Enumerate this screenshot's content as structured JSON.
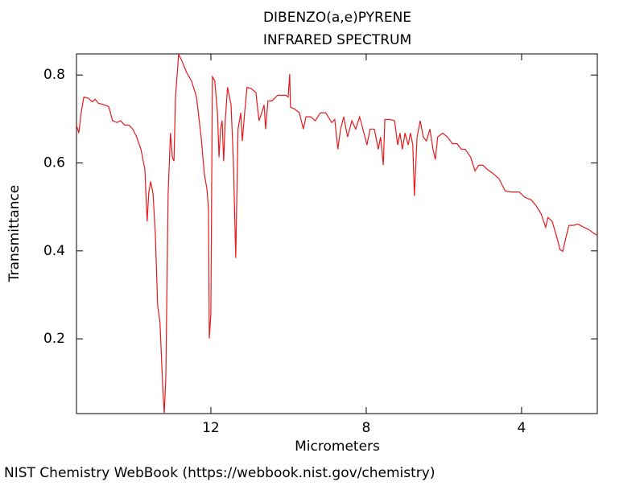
{
  "chart_data": {
    "type": "line",
    "title": "DIBENZO(a,e)PYRENE",
    "subtitle": "INFRARED SPECTRUM",
    "x_label": "Micrometers",
    "y_label": "Transmittance",
    "source": "NIST Chemistry WebBook (https://webbook.nist.gov/chemistry)",
    "xlim": [
      15.46,
      2.05
    ],
    "xticks": [
      12,
      8,
      4
    ],
    "ylim": [
      0.03,
      0.848
    ],
    "yticks": [
      0.2,
      0.4,
      0.6,
      0.8
    ],
    "series": [
      {
        "color": "#e8191c",
        "x": [
          15.46,
          15.4,
          15.34,
          15.27,
          15.15,
          15.05,
          14.98,
          14.9,
          14.74,
          14.63,
          14.53,
          14.42,
          14.32,
          14.22,
          14.11,
          14.01,
          13.91,
          13.8,
          13.7,
          13.64,
          13.6,
          13.55,
          13.49,
          13.43,
          13.37,
          13.31,
          13.24,
          13.2,
          13.16,
          13.1,
          13.04,
          12.99,
          12.95,
          12.91,
          12.83,
          12.75,
          12.62,
          12.5,
          12.37,
          12.25,
          12.17,
          12.1,
          12.06,
          12.04,
          12.0,
          11.96,
          11.9,
          11.83,
          11.79,
          11.75,
          11.71,
          11.67,
          11.63,
          11.57,
          11.48,
          11.42,
          11.36,
          11.3,
          11.23,
          11.19,
          11.13,
          11.07,
          10.96,
          10.84,
          10.76,
          10.69,
          10.63,
          10.59,
          10.53,
          10.43,
          10.28,
          10.07,
          10.01,
          9.97,
          9.95,
          9.85,
          9.72,
          9.62,
          9.55,
          9.43,
          9.31,
          9.18,
          9.04,
          8.89,
          8.81,
          8.73,
          8.66,
          8.58,
          8.48,
          8.37,
          8.27,
          8.17,
          8.06,
          7.98,
          7.9,
          7.79,
          7.69,
          7.63,
          7.56,
          7.52,
          7.38,
          7.27,
          7.19,
          7.13,
          7.07,
          7.0,
          6.92,
          6.86,
          6.8,
          6.76,
          6.69,
          6.61,
          6.53,
          6.45,
          6.36,
          6.28,
          6.22,
          6.16,
          6.03,
          5.91,
          5.78,
          5.66,
          5.55,
          5.45,
          5.31,
          5.2,
          5.1,
          5.0,
          4.89,
          4.75,
          4.58,
          4.42,
          4.25,
          4.06,
          3.92,
          3.75,
          3.63,
          3.5,
          3.38,
          3.32,
          3.21,
          3.09,
          3.01,
          2.94,
          2.86,
          2.78,
          2.67,
          2.55,
          2.4,
          2.26,
          2.13,
          2.05
        ],
        "values": [
          0.686,
          0.668,
          0.714,
          0.75,
          0.747,
          0.739,
          0.745,
          0.736,
          0.732,
          0.728,
          0.696,
          0.692,
          0.696,
          0.686,
          0.686,
          0.677,
          0.659,
          0.631,
          0.586,
          0.467,
          0.531,
          0.558,
          0.531,
          0.439,
          0.275,
          0.238,
          0.092,
          0.03,
          0.11,
          0.531,
          0.668,
          0.613,
          0.604,
          0.75,
          0.847,
          0.833,
          0.805,
          0.787,
          0.75,
          0.659,
          0.577,
          0.54,
          0.494,
          0.201,
          0.256,
          0.796,
          0.787,
          0.714,
          0.613,
          0.677,
          0.696,
          0.604,
          0.696,
          0.772,
          0.732,
          0.604,
          0.384,
          0.677,
          0.714,
          0.65,
          0.714,
          0.772,
          0.769,
          0.76,
          0.696,
          0.714,
          0.732,
          0.677,
          0.741,
          0.741,
          0.754,
          0.754,
          0.75,
          0.802,
          0.727,
          0.723,
          0.714,
          0.677,
          0.705,
          0.705,
          0.696,
          0.714,
          0.714,
          0.692,
          0.699,
          0.631,
          0.677,
          0.705,
          0.659,
          0.696,
          0.677,
          0.705,
          0.668,
          0.641,
          0.677,
          0.677,
          0.631,
          0.659,
          0.595,
          0.699,
          0.699,
          0.696,
          0.641,
          0.668,
          0.631,
          0.668,
          0.641,
          0.668,
          0.641,
          0.525,
          0.659,
          0.696,
          0.659,
          0.65,
          0.677,
          0.631,
          0.608,
          0.659,
          0.668,
          0.659,
          0.644,
          0.644,
          0.631,
          0.631,
          0.613,
          0.582,
          0.595,
          0.595,
          0.586,
          0.577,
          0.564,
          0.536,
          0.534,
          0.534,
          0.522,
          0.516,
          0.503,
          0.485,
          0.454,
          0.476,
          0.467,
          0.43,
          0.403,
          0.399,
          0.43,
          0.458,
          0.458,
          0.461,
          0.454,
          0.448,
          0.439,
          0.436
        ]
      }
    ]
  }
}
